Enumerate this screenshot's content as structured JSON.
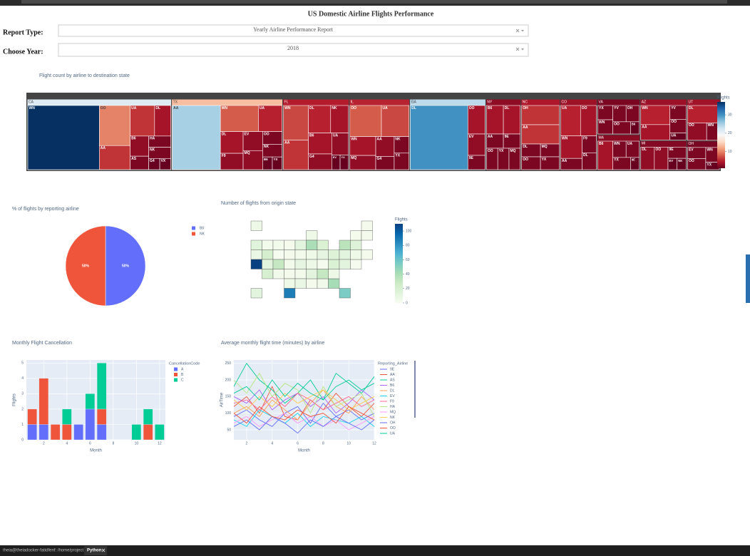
{
  "header": {
    "title": "US Domestic Airline Flights Performance",
    "report_type_label": "Report Type:",
    "report_type_value": "Yearly Airline Performance Report",
    "year_label": "Choose Year:",
    "year_value": "2018"
  },
  "status_bar": {
    "workspace": "theia@theiadocker-fatidfenf: /home/project",
    "tab": "Python"
  },
  "chart_data": [
    {
      "type": "treemap",
      "title": "Flight count by airline to destination state",
      "colorbar_title": "Flights",
      "zlim": [
        1,
        37
      ],
      "zticks": [
        10,
        20,
        30
      ],
      "colorscale": [
        "#67001f",
        "#b2182b",
        "#d6604d",
        "#f4a582",
        "#fddbc7",
        "#f7f7f7",
        "#d1e5f0",
        "#92c5de",
        "#4393c3",
        "#2166ac",
        "#053061"
      ],
      "groups": [
        {
          "label": "CA",
          "children": [
            {
              "label": "WN",
              "value": 37
            },
            {
              "label": "OO",
              "value": 10
            },
            {
              "label": "AA",
              "value": 6
            },
            {
              "label": "UA",
              "value": 6
            },
            {
              "label": "DL",
              "value": 4
            },
            {
              "label": "B6",
              "value": 3
            },
            {
              "label": "AS",
              "value": 2
            },
            {
              "label": "HA",
              "value": 2
            },
            {
              "label": "NK",
              "value": 2
            },
            {
              "label": "G4",
              "value": 1
            },
            {
              "label": "VX",
              "value": 1
            }
          ]
        },
        {
          "label": "TX",
          "children": [
            {
              "label": "AA",
              "value": 25
            },
            {
              "label": "WN",
              "value": 8
            },
            {
              "label": "UA",
              "value": 5
            },
            {
              "label": "DL",
              "value": 4
            },
            {
              "label": "F9",
              "value": 3
            },
            {
              "label": "EV",
              "value": 3
            },
            {
              "label": "MQ",
              "value": 3
            },
            {
              "label": "OO",
              "value": 2
            },
            {
              "label": "NK",
              "value": 2
            },
            {
              "label": "B6",
              "value": 1
            },
            {
              "label": "YX",
              "value": 1
            }
          ]
        },
        {
          "label": "FL",
          "children": [
            {
              "label": "WN",
              "value": 7
            },
            {
              "label": "AA",
              "value": 6
            },
            {
              "label": "DL",
              "value": 5
            },
            {
              "label": "NK",
              "value": 4
            },
            {
              "label": "B6",
              "value": 4
            },
            {
              "label": "G4",
              "value": 3
            },
            {
              "label": "UA",
              "value": 3
            },
            {
              "label": "EV",
              "value": 1
            },
            {
              "label": "YX",
              "value": 1
            }
          ]
        },
        {
          "label": "IL",
          "children": [
            {
              "label": "OO",
              "value": 8
            },
            {
              "label": "UA",
              "value": 7
            },
            {
              "label": "WN",
              "value": 4
            },
            {
              "label": "MQ",
              "value": 3
            },
            {
              "label": "AA",
              "value": 3
            },
            {
              "label": "G4",
              "value": 2
            },
            {
              "label": "NK",
              "value": 2
            },
            {
              "label": "YX",
              "value": 2
            }
          ]
        },
        {
          "label": "GA",
          "children": [
            {
              "label": "DL",
              "value": 30
            },
            {
              "label": "OO",
              "value": 4
            },
            {
              "label": "EV",
              "value": 3
            },
            {
              "label": "9E",
              "value": 2
            }
          ]
        },
        {
          "label": "NY",
          "children": [
            {
              "label": "B6",
              "value": 4
            },
            {
              "label": "DL",
              "value": 4
            },
            {
              "label": "AA",
              "value": 2
            },
            {
              "label": "9E",
              "value": 2
            },
            {
              "label": "OO",
              "value": 2
            },
            {
              "label": "YX",
              "value": 2
            },
            {
              "label": "MQ",
              "value": 2
            }
          ]
        },
        {
          "label": "NC",
          "children": [
            {
              "label": "OH",
              "value": 6
            },
            {
              "label": "AA",
              "value": 6
            },
            {
              "label": "DL",
              "value": 2
            },
            {
              "label": "OO",
              "value": 2
            },
            {
              "label": "MQ",
              "value": 2
            },
            {
              "label": "YX",
              "value": 2
            }
          ]
        },
        {
          "label": "CO",
          "children": [
            {
              "label": "UA",
              "value": 5
            },
            {
              "label": "OO",
              "value": 4
            },
            {
              "label": "WN",
              "value": 4
            },
            {
              "label": "AA",
              "value": 2
            },
            {
              "label": "F9",
              "value": 2
            },
            {
              "label": "DL",
              "value": 2
            }
          ]
        },
        {
          "label": "VA",
          "children": [
            {
              "label": "YX",
              "value": 2
            },
            {
              "label": "WN",
              "value": 2
            },
            {
              "label": "YV",
              "value": 2
            },
            {
              "label": "OH",
              "value": 2
            },
            {
              "label": "OO",
              "value": 2
            },
            {
              "label": "B6",
              "value": 1
            }
          ]
        },
        {
          "label": "MA",
          "children": [
            {
              "label": "B6",
              "value": 4
            },
            {
              "label": "WN",
              "value": 2
            },
            {
              "label": "UA",
              "value": 2
            },
            {
              "label": "YX",
              "value": 2
            },
            {
              "label": "9E",
              "value": 1
            }
          ]
        },
        {
          "label": "AZ",
          "children": [
            {
              "label": "WN",
              "value": 5
            },
            {
              "label": "AA",
              "value": 4
            },
            {
              "label": "YV",
              "value": 2
            },
            {
              "label": "OO",
              "value": 2
            },
            {
              "label": "UA",
              "value": 1
            }
          ]
        },
        {
          "label": "MI",
          "children": [
            {
              "label": "DL",
              "value": 3
            },
            {
              "label": "OO",
              "value": 3
            },
            {
              "label": "9E",
              "value": 2
            },
            {
              "label": "EV",
              "value": 1
            },
            {
              "label": "NK",
              "value": 1
            }
          ]
        },
        {
          "label": "UT",
          "children": [
            {
              "label": "DL",
              "value": 5
            },
            {
              "label": "OO",
              "value": 3
            },
            {
              "label": "WN",
              "value": 2
            }
          ]
        },
        {
          "label": "OH",
          "children": [
            {
              "label": "EV",
              "value": 2
            },
            {
              "label": "OO",
              "value": 2
            },
            {
              "label": "WN",
              "value": 2
            },
            {
              "label": "YX",
              "value": 1
            }
          ]
        }
      ]
    },
    {
      "type": "pie",
      "title": "% of flights by reporting airline",
      "categories": [
        "B6",
        "NK"
      ],
      "values": [
        50,
        50
      ],
      "value_labels": [
        "50%",
        "50%"
      ],
      "colors": [
        "#636efa",
        "#ef553b"
      ]
    },
    {
      "type": "choropleth",
      "title": "Number of flights from origin state",
      "colorbar_title": "Flights",
      "zlim": [
        0,
        110
      ],
      "zticks": [
        0,
        20,
        40,
        60,
        80,
        100
      ],
      "colorscale": [
        "#f7fcf0",
        "#e0f3db",
        "#ccebc5",
        "#a8ddb5",
        "#7bccc4",
        "#4eb3d3",
        "#2b8cbe",
        "#0868ac",
        "#084081"
      ],
      "locations": [
        "WA",
        "OR",
        "CA",
        "NV",
        "ID",
        "MT",
        "WY",
        "UT",
        "AZ",
        "NM",
        "CO",
        "ND",
        "SD",
        "NE",
        "KS",
        "OK",
        "TX",
        "MN",
        "IA",
        "MO",
        "AR",
        "LA",
        "WI",
        "IL",
        "MS",
        "MI",
        "IN",
        "KY",
        "TN",
        "AL",
        "OH",
        "WV",
        "GA",
        "FL",
        "SC",
        "NC",
        "VA",
        "PA",
        "NY",
        "NJ",
        "MD",
        "DE",
        "CT",
        "RI",
        "MA",
        "VT",
        "NH",
        "ME",
        "AK",
        "HI"
      ],
      "values": [
        14,
        8,
        110,
        22,
        3,
        3,
        1,
        12,
        20,
        4,
        30,
        2,
        2,
        3,
        2,
        5,
        88,
        12,
        3,
        10,
        3,
        8,
        5,
        40,
        2,
        18,
        5,
        6,
        12,
        4,
        10,
        1,
        42,
        55,
        6,
        30,
        18,
        16,
        34,
        12,
        12,
        1,
        5,
        2,
        15,
        2,
        2,
        2,
        6,
        12
      ]
    },
    {
      "type": "bar",
      "title": "Monthly Flight Cancellation",
      "x_label": "Month",
      "y_label": "Flights",
      "legend_title": "CancellationCode",
      "x": [
        1,
        2,
        3,
        4,
        5,
        6,
        7,
        8,
        9,
        10,
        11,
        12
      ],
      "xlim": [
        0.5,
        12.5
      ],
      "xticks": [
        2,
        4,
        6,
        8,
        10,
        12
      ],
      "ylim": [
        0,
        5.2
      ],
      "yticks": [
        0,
        1,
        2,
        3,
        4,
        5
      ],
      "grid": true,
      "stacked": true,
      "series": [
        {
          "name": "A",
          "color": "#636efa",
          "values": [
            1,
            1,
            null,
            null,
            1,
            2,
            1,
            null,
            null,
            null,
            null,
            null
          ]
        },
        {
          "name": "B",
          "color": "#ef553b",
          "values": [
            1,
            3,
            1,
            1,
            null,
            null,
            1,
            null,
            null,
            null,
            1,
            null
          ]
        },
        {
          "name": "C",
          "color": "#00cc96",
          "values": [
            null,
            null,
            null,
            1,
            null,
            1,
            3,
            null,
            null,
            1,
            1,
            1
          ]
        }
      ]
    },
    {
      "type": "line",
      "title": "Average monthly flight time (minutes) by airline",
      "x_label": "Month",
      "y_label": "AirTime",
      "legend_title": "Reporting_Airline",
      "x": [
        1,
        2,
        3,
        4,
        5,
        6,
        7,
        8,
        9,
        10,
        11,
        12
      ],
      "xlim": [
        1,
        12
      ],
      "xticks": [
        2,
        4,
        6,
        8,
        10,
        12
      ],
      "ylim": [
        20,
        260
      ],
      "yticks": [
        50,
        100,
        150,
        200,
        250
      ],
      "grid": true,
      "series": [
        {
          "name": "9E",
          "color": "#636efa",
          "values": [
            90,
            110,
            80,
            60,
            100,
            120,
            70,
            130,
            90,
            110,
            80,
            100
          ]
        },
        {
          "name": "AA",
          "color": "#ef553b",
          "values": [
            120,
            150,
            100,
            180,
            90,
            80,
            140,
            110,
            160,
            120,
            90,
            130
          ]
        },
        {
          "name": "AS",
          "color": "#00cc96",
          "values": [
            180,
            250,
            200,
            170,
            130,
            160,
            200,
            140,
            220,
            190,
            160,
            210
          ]
        },
        {
          "name": "B6",
          "color": "#ab63fa",
          "values": [
            150,
            130,
            170,
            110,
            140,
            160,
            120,
            150,
            100,
            130,
            170,
            140
          ]
        },
        {
          "name": "DL",
          "color": "#ffa15a",
          "values": [
            100,
            120,
            90,
            140,
            110,
            80,
            130,
            170,
            120,
            100,
            150,
            110
          ]
        },
        {
          "name": "EV",
          "color": "#19d3f3",
          "values": [
            80,
            60,
            110,
            90,
            70,
            100,
            60,
            90,
            80,
            70,
            90,
            60
          ]
        },
        {
          "name": "F9",
          "color": "#ff6692",
          "values": [
            130,
            140,
            110,
            150,
            120,
            160,
            140,
            110,
            130,
            150,
            120,
            140
          ]
        },
        {
          "name": "HA",
          "color": "#b6e880",
          "values": [
            200,
            160,
            220,
            150,
            190,
            170,
            100,
            180,
            120,
            140,
            160,
            90
          ]
        },
        {
          "name": "MQ",
          "color": "#ff97ff",
          "values": [
            70,
            90,
            60,
            80,
            100,
            70,
            90,
            60,
            80,
            50,
            70,
            90
          ]
        },
        {
          "name": "NK",
          "color": "#fecb52",
          "values": [
            140,
            110,
            150,
            120,
            160,
            130,
            150,
            170,
            140,
            110,
            130,
            150
          ]
        },
        {
          "name": "OH",
          "color": "#636efa",
          "values": [
            60,
            80,
            50,
            90,
            70,
            40,
            80,
            60,
            90,
            70,
            50,
            80
          ]
        },
        {
          "name": "OO",
          "color": "#ef553b",
          "values": [
            100,
            70,
            120,
            90,
            80,
            110,
            90,
            100,
            70,
            120,
            100,
            80
          ]
        },
        {
          "name": "UA",
          "color": "#00cc96",
          "values": [
            160,
            180,
            140,
            200,
            150,
            190,
            160,
            140,
            180,
            200,
            170,
            190
          ]
        }
      ]
    }
  ]
}
